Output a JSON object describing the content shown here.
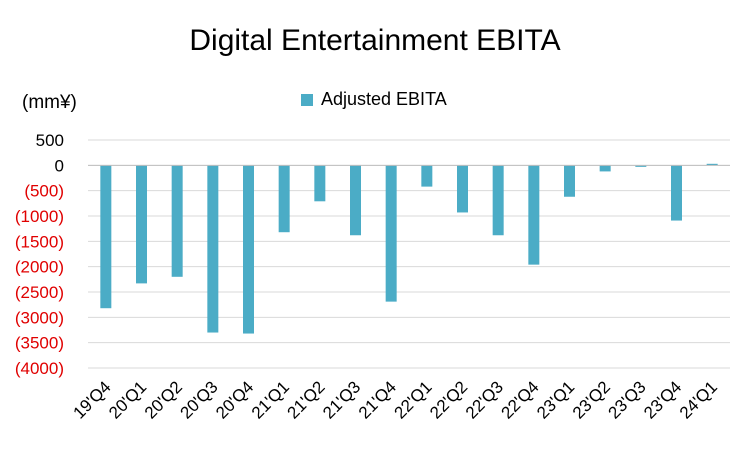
{
  "chart_data": {
    "type": "bar",
    "title": "Digital Entertainment EBITA",
    "unit_label": "(mm¥)",
    "legend": {
      "label": "Adjusted EBITA",
      "position": "top"
    },
    "categories": [
      "19'Q4",
      "20'Q1",
      "20'Q2",
      "20'Q3",
      "20'Q4",
      "21'Q1",
      "21'Q2",
      "21'Q3",
      "21'Q4",
      "22'Q1",
      "22'Q2",
      "22'Q3",
      "22'Q4",
      "23'Q1",
      "23'Q2",
      "23'Q3",
      "23'Q4",
      "24'Q1"
    ],
    "series": [
      {
        "name": "Adjusted EBITA",
        "values": [
          -2820,
          -2330,
          -2200,
          -3300,
          -3320,
          -1320,
          -710,
          -1380,
          -2690,
          -420,
          -930,
          -1380,
          -1960,
          -620,
          -120,
          -30,
          -1090,
          30
        ]
      }
    ],
    "yticks": [
      500,
      0,
      -500,
      -1000,
      -1500,
      -2000,
      -2500,
      -3000,
      -3500,
      -4000
    ],
    "ytick_labels": [
      "500",
      "0",
      "(500)",
      "(1000)",
      "(1500)",
      "(2000)",
      "(2500)",
      "(3000)",
      "(3500)",
      "(4000)"
    ],
    "ylim": [
      -4000,
      500
    ],
    "grid": true,
    "colors": {
      "bar": "#4BACC6",
      "negative_tick": "#E00000",
      "positive_tick": "#000000",
      "grid": "#D9D9D9"
    }
  }
}
